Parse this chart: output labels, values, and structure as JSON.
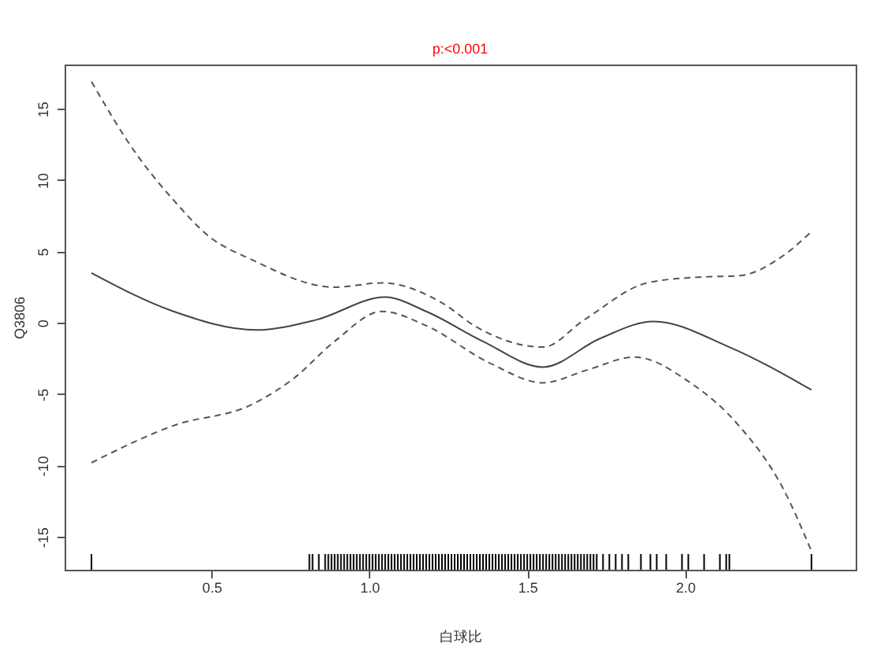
{
  "chart_data": {
    "type": "line",
    "title": "p:<0.001",
    "xlabel": "白球比",
    "ylabel": "Q3806",
    "xlim": [
      0.035,
      2.54
    ],
    "ylim": [
      -17.3,
      18.1
    ],
    "xticks": [
      {
        "value": 0.5,
        "label": "0.5"
      },
      {
        "value": 1,
        "label": "1.0"
      },
      {
        "value": 1.5,
        "label": "1.5"
      },
      {
        "value": 2,
        "label": "2.0"
      }
    ],
    "yticks": [
      -15,
      -10,
      -5,
      0,
      5,
      10,
      15
    ],
    "grid": false,
    "series": [
      {
        "color": "#444444",
        "line_style": "solid",
        "x": [
          0.12,
          0.38,
          0.64,
          0.83,
          1.05,
          1.18,
          1.36,
          1.55,
          1.73,
          1.9,
          2.14,
          2.4
        ],
        "values": [
          3.5,
          0.8,
          -0.5,
          0.2,
          1.8,
          0.8,
          -1.3,
          -3.1,
          -1.1,
          0.1,
          -1.7,
          -4.7
        ]
      },
      {
        "color": "#555555",
        "line_style": "dashed",
        "x": [
          0.12,
          0.26,
          0.38,
          0.49,
          0.63,
          0.89,
          1.04,
          1.23,
          1.34,
          1.55,
          1.68,
          1.88,
          2.04,
          2.17,
          2.31,
          2.4
        ],
        "values": [
          16.9,
          11.9,
          8.6,
          6.1,
          4.4,
          2.5,
          2.8,
          1.4,
          -0.3,
          -1.7,
          0.2,
          2.8,
          3.2,
          3.3,
          4.7,
          6.4
        ]
      },
      {
        "color": "#555555",
        "line_style": "dashed",
        "x": [
          0.12,
          0.38,
          0.63,
          0.76,
          0.89,
          1.04,
          1.18,
          1.38,
          1.55,
          1.69,
          1.84,
          2.01,
          2.17,
          2.31,
          2.4
        ],
        "values": [
          -9.8,
          -7.2,
          -5.7,
          -3.9,
          -1.3,
          0.8,
          -0.2,
          -2.8,
          -4.2,
          -3.3,
          -2.4,
          -4.1,
          -7.2,
          -11.6,
          -16.0
        ]
      },
      {
        "type": "bar",
        "color": "#000000",
        "base": [
          -17.3,
          -17.3,
          -17.3,
          -17.3,
          -17.3,
          -17.3,
          -17.3,
          -17.3,
          -17.3,
          -17.3,
          -17.3,
          -17.3,
          -17.3,
          -17.3,
          -17.3,
          -17.3,
          -17.3,
          -17.3,
          -17.3,
          -17.3,
          -17.3,
          -17.3,
          -17.3,
          -17.3,
          -17.3,
          -17.3,
          -17.3,
          -17.3,
          -17.3,
          -17.3,
          -17.3,
          -17.3,
          -17.3,
          -17.3,
          -17.3,
          -17.3,
          -17.3,
          -17.3,
          -17.3,
          -17.3,
          -17.3,
          -17.3,
          -17.3,
          -17.3,
          -17.3,
          -17.3,
          -17.3,
          -17.3,
          -17.3,
          -17.3,
          -17.3,
          -17.3,
          -17.3,
          -17.3,
          -17.3,
          -17.3,
          -17.3,
          -17.3,
          -17.3,
          -17.3,
          -17.3,
          -17.3,
          -17.3,
          -17.3,
          -17.3,
          -17.3,
          -17.3,
          -17.3,
          -17.3,
          -17.3,
          -17.3,
          -17.3,
          -17.3,
          -17.3,
          -17.3,
          -17.3,
          -17.3,
          -17.3,
          -17.3,
          -17.3,
          -17.3,
          -17.3,
          -17.3,
          -17.3,
          -17.3,
          -17.3,
          -17.3,
          -17.3,
          -17.3,
          -17.3,
          -17.3,
          -17.3,
          -17.3,
          -17.3,
          -17.3,
          -17.3,
          -17.3,
          -17.3,
          -17.3,
          -17.3,
          -17.3,
          -17.3,
          -17.3,
          -17.3,
          -17.3,
          -17.3,
          -17.3
        ],
        "x": [
          0.12,
          0.81,
          0.82,
          0.84,
          0.86,
          0.87,
          0.88,
          0.89,
          0.9,
          0.91,
          0.92,
          0.93,
          0.94,
          0.95,
          0.96,
          0.97,
          0.98,
          0.99,
          1.0,
          1.01,
          1.02,
          1.03,
          1.04,
          1.05,
          1.06,
          1.07,
          1.08,
          1.09,
          1.1,
          1.11,
          1.12,
          1.13,
          1.14,
          1.15,
          1.16,
          1.17,
          1.18,
          1.19,
          1.2,
          1.21,
          1.22,
          1.23,
          1.24,
          1.25,
          1.26,
          1.27,
          1.28,
          1.29,
          1.3,
          1.31,
          1.32,
          1.33,
          1.34,
          1.35,
          1.36,
          1.37,
          1.38,
          1.39,
          1.4,
          1.41,
          1.42,
          1.43,
          1.44,
          1.45,
          1.46,
          1.47,
          1.48,
          1.49,
          1.5,
          1.51,
          1.52,
          1.53,
          1.54,
          1.55,
          1.56,
          1.57,
          1.58,
          1.59,
          1.6,
          1.61,
          1.62,
          1.63,
          1.64,
          1.65,
          1.66,
          1.67,
          1.68,
          1.69,
          1.7,
          1.71,
          1.72,
          1.74,
          1.76,
          1.78,
          1.8,
          1.82,
          1.86,
          1.89,
          1.91,
          1.94,
          1.99,
          2.01,
          2.06,
          2.11,
          2.13,
          2.14,
          2.4
        ],
        "values": [
          1.1,
          1.1,
          1.1,
          1.1,
          1.1,
          1.1,
          1.1,
          1.1,
          1.1,
          1.1,
          1.1,
          1.1,
          1.1,
          1.1,
          1.1,
          1.1,
          1.1,
          1.1,
          1.1,
          1.1,
          1.1,
          1.1,
          1.1,
          1.1,
          1.1,
          1.1,
          1.1,
          1.1,
          1.1,
          1.1,
          1.1,
          1.1,
          1.1,
          1.1,
          1.1,
          1.1,
          1.1,
          1.1,
          1.1,
          1.1,
          1.1,
          1.1,
          1.1,
          1.1,
          1.1,
          1.1,
          1.1,
          1.1,
          1.1,
          1.1,
          1.1,
          1.1,
          1.1,
          1.1,
          1.1,
          1.1,
          1.1,
          1.1,
          1.1,
          1.1,
          1.1,
          1.1,
          1.1,
          1.1,
          1.1,
          1.1,
          1.1,
          1.1,
          1.1,
          1.1,
          1.1,
          1.1,
          1.1,
          1.1,
          1.1,
          1.1,
          1.1,
          1.1,
          1.1,
          1.1,
          1.1,
          1.1,
          1.1,
          1.1,
          1.1,
          1.1,
          1.1,
          1.1,
          1.1,
          1.1,
          1.1,
          1.1,
          1.1,
          1.1,
          1.1,
          1.1,
          1.1,
          1.1,
          1.1,
          1.1,
          1.1,
          1.1,
          1.1,
          1.1,
          1.1,
          1.1,
          1.1
        ]
      }
    ]
  }
}
